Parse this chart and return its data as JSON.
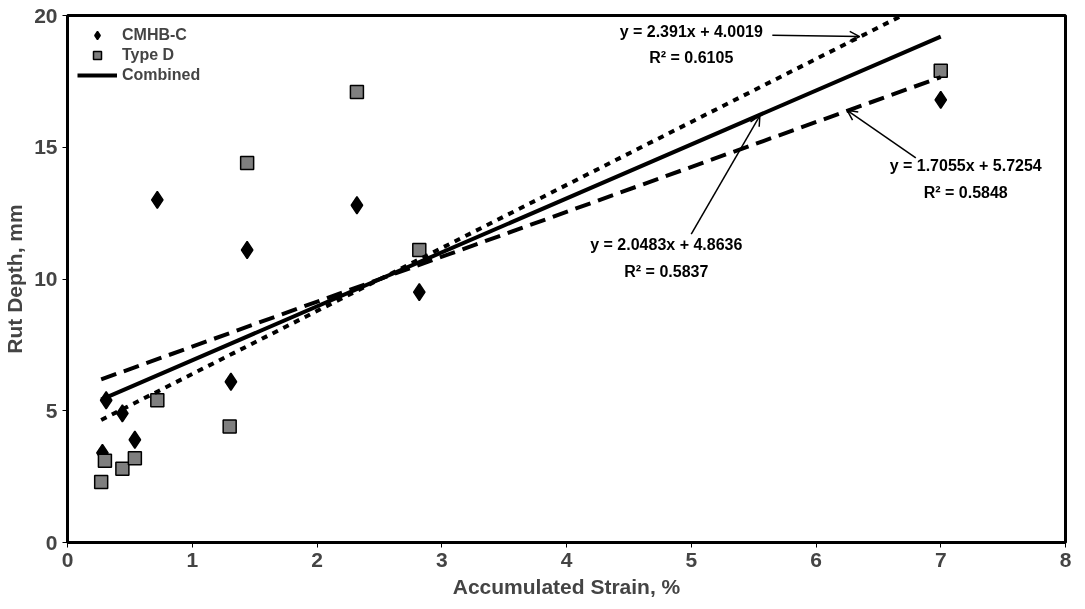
{
  "chart_data": {
    "type": "scatter",
    "xlabel": "Accumulated Strain, %",
    "ylabel": "Rut Depth, mm",
    "xlim": [
      0,
      8
    ],
    "ylim": [
      0,
      20
    ],
    "xticks": [
      0,
      1,
      2,
      3,
      4,
      5,
      6,
      7,
      8
    ],
    "yticks": [
      0,
      5,
      10,
      15,
      20
    ],
    "grid": false,
    "legend": "top left",
    "series": [
      {
        "name": "CMHB-C",
        "marker": "diamond",
        "color": "#000000",
        "x": [
          0.31,
          0.44,
          0.54,
          0.28,
          1.31,
          0.72,
          1.44,
          2.32,
          2.82,
          7.0
        ],
        "values": [
          5.4,
          4.9,
          3.9,
          3.4,
          6.1,
          13.0,
          11.1,
          12.8,
          9.5,
          16.8
        ]
      },
      {
        "name": "Type D",
        "marker": "square",
        "color": "#7f7f7f",
        "x": [
          0.72,
          0.3,
          0.44,
          0.54,
          0.27,
          1.3,
          1.44,
          2.82,
          2.32,
          7.0
        ],
        "values": [
          5.4,
          3.1,
          2.8,
          3.2,
          2.3,
          4.4,
          14.4,
          11.1,
          17.1,
          17.9
        ]
      },
      {
        "name": "Combined",
        "type": "line",
        "line_style": "solid",
        "color": "#000000",
        "x": [
          0.27,
          7.0
        ],
        "values": [
          5.42,
          19.2
        ]
      },
      {
        "type": "line",
        "line_style": "dashed",
        "color": "#000000",
        "x": [
          0.27,
          7.0
        ],
        "values": [
          6.19,
          17.66
        ]
      },
      {
        "type": "line",
        "line_style": "dotted",
        "color": "#000000",
        "x": [
          0.27,
          6.69
        ],
        "values": [
          4.65,
          20.0
        ]
      }
    ],
    "annotations": [
      {
        "text": "y = 2.391x + 4.0019\nR² = 0.6105",
        "x": 6.35,
        "y": 19.2
      },
      {
        "text": "y = 2.0483x + 4.8636\nR² = 0.5837",
        "x": 5.55,
        "y": 16.2
      },
      {
        "text": "y = 1.7055x + 5.7254\nR² = 0.5848",
        "x": 6.25,
        "y": 16.4
      }
    ]
  }
}
